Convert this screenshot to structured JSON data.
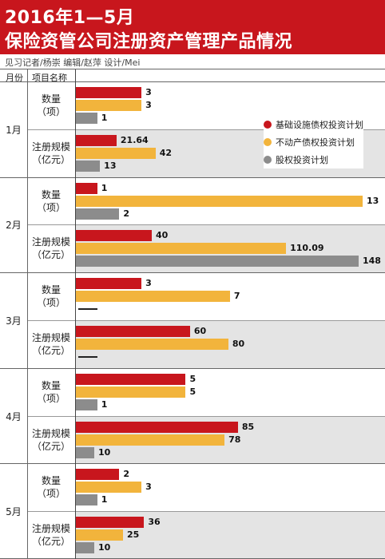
{
  "header": {
    "title_line1": "2016年1—5月",
    "title_line2": "保险资管公司注册资产管理产品情况",
    "credits": "见习记者/杨崇   编辑/赵萍   设计/Mei",
    "col_month": "月份",
    "col_item": "项目名称"
  },
  "colors": {
    "infra": "#c8161d",
    "realestate": "#f2b43c",
    "equity": "#8c8c8c",
    "header_bg": "#c8161d",
    "group_bg": "#e4e4e4"
  },
  "chart_data": {
    "type": "bar",
    "orientation": "horizontal",
    "title": "2016年1—5月 保险资管公司注册资产管理产品情况",
    "legend": {
      "placement": "right",
      "entries": [
        "基础设施债权投资计划",
        "不动产债权投资计划",
        "股权投资计划"
      ]
    },
    "months": [
      {
        "month": "1月",
        "groups": [
          {
            "label_line1": "数量",
            "label_line2": "（项）",
            "values": [
              {
                "v": 3,
                "t": "3"
              },
              {
                "v": 3,
                "t": "3"
              },
              {
                "v": 1,
                "t": "1"
              }
            ]
          },
          {
            "label_line1": "注册规模",
            "label_line2": "（亿元）",
            "values": [
              {
                "v": 21.64,
                "t": "21.64"
              },
              {
                "v": 42,
                "t": "42"
              },
              {
                "v": 13,
                "t": "13"
              }
            ]
          }
        ]
      },
      {
        "month": "2月",
        "groups": [
          {
            "label_line1": "数量",
            "label_line2": "（项）",
            "values": [
              {
                "v": 1,
                "t": "1"
              },
              {
                "v": 13,
                "t": "13"
              },
              {
                "v": 2,
                "t": "2"
              }
            ]
          },
          {
            "label_line1": "注册规模",
            "label_line2": "（亿元）",
            "values": [
              {
                "v": 40,
                "t": "40"
              },
              {
                "v": 110.09,
                "t": "110.09"
              },
              {
                "v": 148,
                "t": "148"
              }
            ]
          }
        ]
      },
      {
        "month": "3月",
        "groups": [
          {
            "label_line1": "数量",
            "label_line2": "（项）",
            "values": [
              {
                "v": 3,
                "t": "3"
              },
              {
                "v": 7,
                "t": "7"
              },
              {
                "v": null,
                "t": ""
              }
            ]
          },
          {
            "label_line1": "注册规模",
            "label_line2": "（亿元）",
            "values": [
              {
                "v": 60,
                "t": "60"
              },
              {
                "v": 80,
                "t": "80"
              },
              {
                "v": null,
                "t": ""
              }
            ]
          }
        ]
      },
      {
        "month": "4月",
        "groups": [
          {
            "label_line1": "数量",
            "label_line2": "（项）",
            "values": [
              {
                "v": 5,
                "t": "5"
              },
              {
                "v": 5,
                "t": "5"
              },
              {
                "v": 1,
                "t": "1"
              }
            ]
          },
          {
            "label_line1": "注册规模",
            "label_line2": "（亿元）",
            "values": [
              {
                "v": 85,
                "t": "85"
              },
              {
                "v": 78,
                "t": "78"
              },
              {
                "v": 10,
                "t": "10"
              }
            ]
          }
        ]
      },
      {
        "month": "5月",
        "groups": [
          {
            "label_line1": "数量",
            "label_line2": "（项）",
            "values": [
              {
                "v": 2,
                "t": "2"
              },
              {
                "v": 3,
                "t": "3"
              },
              {
                "v": 1,
                "t": "1"
              }
            ]
          },
          {
            "label_line1": "注册规模",
            "label_line2": "（亿元）",
            "values": [
              {
                "v": 36,
                "t": "36"
              },
              {
                "v": 25,
                "t": "25"
              },
              {
                "v": 10,
                "t": "10"
              }
            ]
          }
        ]
      }
    ]
  }
}
